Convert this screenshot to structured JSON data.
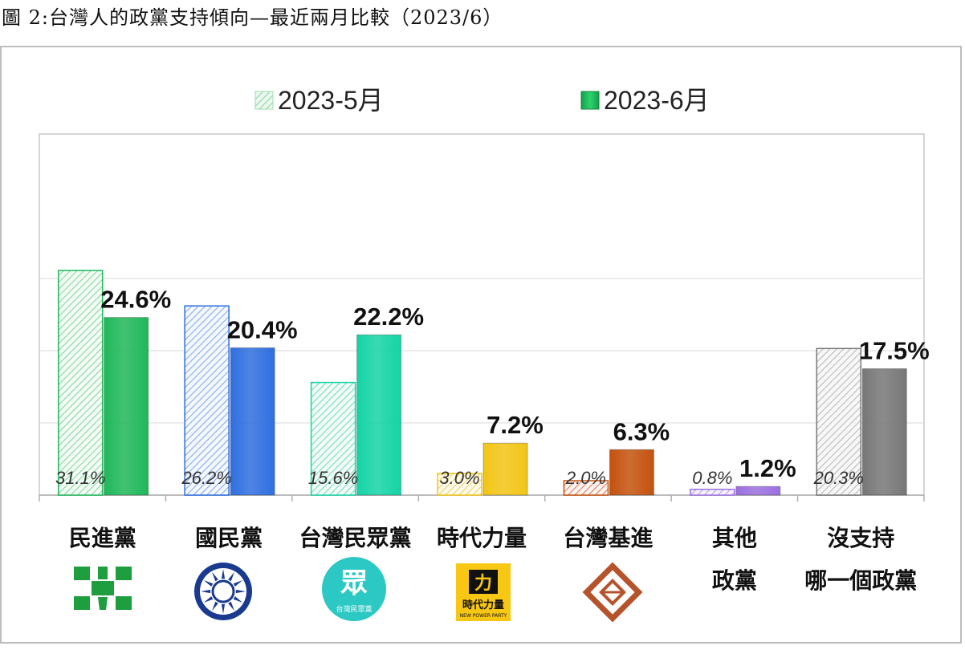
{
  "caption": "圖 2:台灣人的政黨支持傾向—最近兩月比較（2023/6）",
  "legend": {
    "may": "2023-5月",
    "june": "2023-6月"
  },
  "colors": {
    "may_pattern": "#bfe8c9",
    "grid": "#d9d9d9"
  },
  "chart_data": {
    "type": "bar",
    "categories": [
      "民進黨",
      "國民黨",
      "台灣民眾黨",
      "時代力量",
      "台灣基進",
      "其他政黨",
      "沒支持哪一個政黨"
    ],
    "category_lines": [
      [
        "民進黨"
      ],
      [
        "國民黨"
      ],
      [
        "台灣民眾黨"
      ],
      [
        "時代力量"
      ],
      [
        "台灣基進"
      ],
      [
        "其他",
        "政黨"
      ],
      [
        "沒支持",
        "哪一個政黨"
      ]
    ],
    "series": [
      {
        "name": "2023-5月",
        "values": [
          31.1,
          26.2,
          15.6,
          3.0,
          2.0,
          0.8,
          20.3
        ],
        "labels": [
          "31.1%",
          "26.2%",
          "15.6%",
          "3.0%",
          "2.0%",
          "0.8%",
          "20.3%"
        ]
      },
      {
        "name": "2023-6月",
        "values": [
          24.6,
          20.4,
          22.2,
          7.2,
          6.3,
          1.2,
          17.5
        ],
        "labels": [
          "24.6%",
          "20.4%",
          "22.2%",
          "7.2%",
          "6.3%",
          "1.2%",
          "17.5%"
        ]
      }
    ],
    "bar_colors": [
      "#1fb85a",
      "#2f6fe0",
      "#14d4a5",
      "#f2c515",
      "#c4520e",
      "#9b6fe0",
      "#777777"
    ],
    "hatch_colors": [
      "#7fd49a",
      "#7fa6ea",
      "#6fd9b6",
      "#e8cf6a",
      "#d9775a",
      "#b59be8",
      "#b5b5b5"
    ],
    "ylim": [
      0,
      35
    ],
    "grid": true,
    "legend_position": "top",
    "logos": [
      {
        "name": "dpp-logo-icon",
        "text": ""
      },
      {
        "name": "kmt-logo-icon",
        "text": ""
      },
      {
        "name": "tpp-logo-icon",
        "text": "眾"
      },
      {
        "name": "npp-logo-icon",
        "text": "時代力量"
      },
      {
        "name": "tsp-logo-icon",
        "text": ""
      }
    ]
  }
}
